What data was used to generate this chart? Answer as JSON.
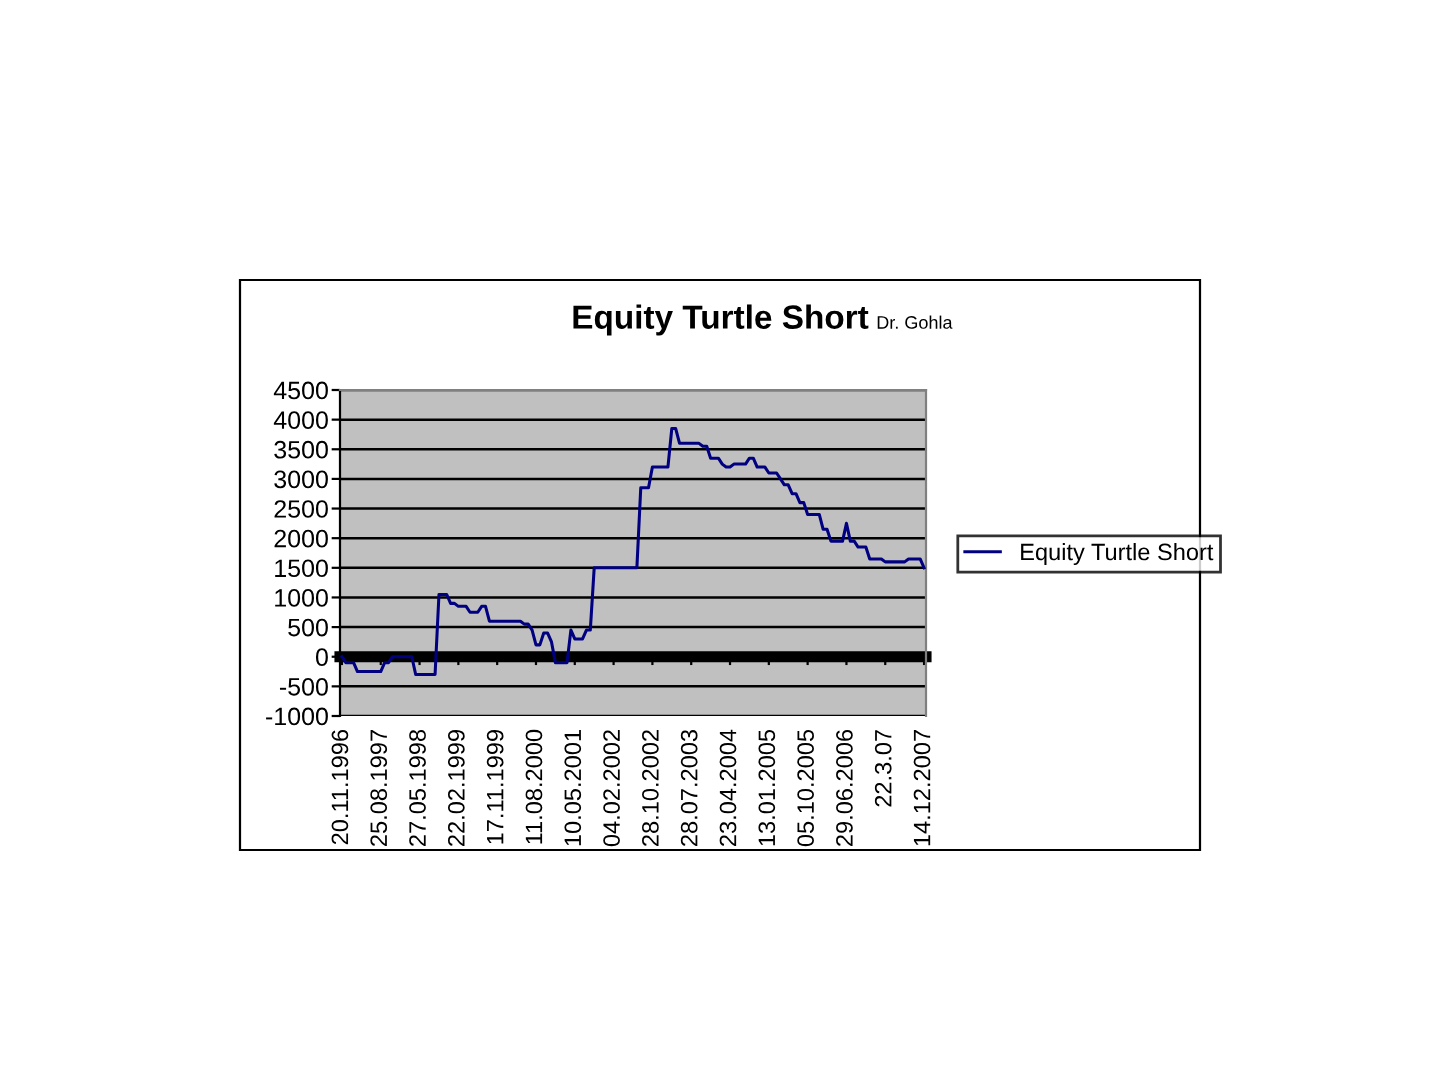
{
  "chart_data": {
    "type": "line",
    "title": "Equity Turtle Short",
    "subtitle": "Dr. Gohla",
    "categories": [
      "20.11.1996",
      null,
      null,
      null,
      null,
      null,
      null,
      null,
      null,
      null,
      "25.08.1997",
      null,
      null,
      null,
      null,
      null,
      null,
      null,
      null,
      null,
      "27.05.1998",
      null,
      null,
      null,
      null,
      null,
      null,
      null,
      null,
      null,
      "22.02.1999",
      null,
      null,
      null,
      null,
      null,
      null,
      null,
      null,
      null,
      "17.11.1999",
      null,
      null,
      null,
      null,
      null,
      null,
      null,
      null,
      null,
      "11.08.2000",
      null,
      null,
      null,
      null,
      null,
      null,
      null,
      null,
      null,
      "10.05.2001",
      null,
      null,
      null,
      null,
      null,
      null,
      null,
      null,
      null,
      "04.02.2002",
      null,
      null,
      null,
      null,
      null,
      null,
      null,
      null,
      null,
      "28.10.2002",
      null,
      null,
      null,
      null,
      null,
      null,
      null,
      null,
      null,
      "28.07.2003",
      null,
      null,
      null,
      null,
      null,
      null,
      null,
      null,
      null,
      "23.04.2004",
      null,
      null,
      null,
      null,
      null,
      null,
      null,
      null,
      null,
      "13.01.2005",
      null,
      null,
      null,
      null,
      null,
      null,
      null,
      null,
      null,
      "05.10.2005",
      null,
      null,
      null,
      null,
      null,
      null,
      null,
      null,
      null,
      "29.06.2006",
      null,
      null,
      null,
      null,
      null,
      null,
      null,
      null,
      null,
      "22.3.07",
      null,
      null,
      null,
      null,
      null,
      null,
      null,
      null,
      null,
      "14.12.2007"
    ],
    "series": [
      {
        "name": "Equity Turtle Short",
        "color": "#000080",
        "values": [
          0,
          -100,
          -100,
          -100,
          -250,
          -250,
          -250,
          -250,
          -250,
          -250,
          -250,
          -100,
          -100,
          0,
          0,
          0,
          0,
          0,
          0,
          -300,
          -300,
          -300,
          -300,
          -300,
          -300,
          1050,
          1050,
          1050,
          900,
          900,
          850,
          850,
          850,
          750,
          750,
          750,
          850,
          850,
          600,
          600,
          600,
          600,
          600,
          600,
          600,
          600,
          600,
          550,
          550,
          450,
          200,
          200,
          400,
          400,
          250,
          -100,
          -100,
          -100,
          -100,
          450,
          300,
          300,
          300,
          450,
          450,
          1500,
          1500,
          1500,
          1500,
          1500,
          1500,
          1500,
          1500,
          1500,
          1500,
          1500,
          1500,
          2850,
          2850,
          2850,
          3200,
          3200,
          3200,
          3200,
          3200,
          3850,
          3850,
          3600,
          3600,
          3600,
          3600,
          3600,
          3600,
          3550,
          3550,
          3350,
          3350,
          3350,
          3250,
          3200,
          3200,
          3250,
          3250,
          3250,
          3250,
          3350,
          3350,
          3200,
          3200,
          3200,
          3100,
          3100,
          3100,
          3000,
          2900,
          2900,
          2750,
          2750,
          2600,
          2600,
          2400,
          2400,
          2400,
          2400,
          2150,
          2150,
          1950,
          1950,
          1950,
          1950,
          2250,
          1950,
          1950,
          1850,
          1850,
          1850,
          1650,
          1650,
          1650,
          1650,
          1600,
          1600,
          1600,
          1600,
          1600,
          1600,
          1650,
          1650,
          1650,
          1650,
          1500
        ]
      }
    ],
    "ylim": [
      -1000,
      4500
    ],
    "yticks": [
      -1000,
      -500,
      0,
      500,
      1000,
      1500,
      2000,
      2500,
      3000,
      3500,
      4000,
      4500
    ],
    "grid": "y",
    "legend": "right",
    "marker": "none",
    "line_style": "solid"
  }
}
